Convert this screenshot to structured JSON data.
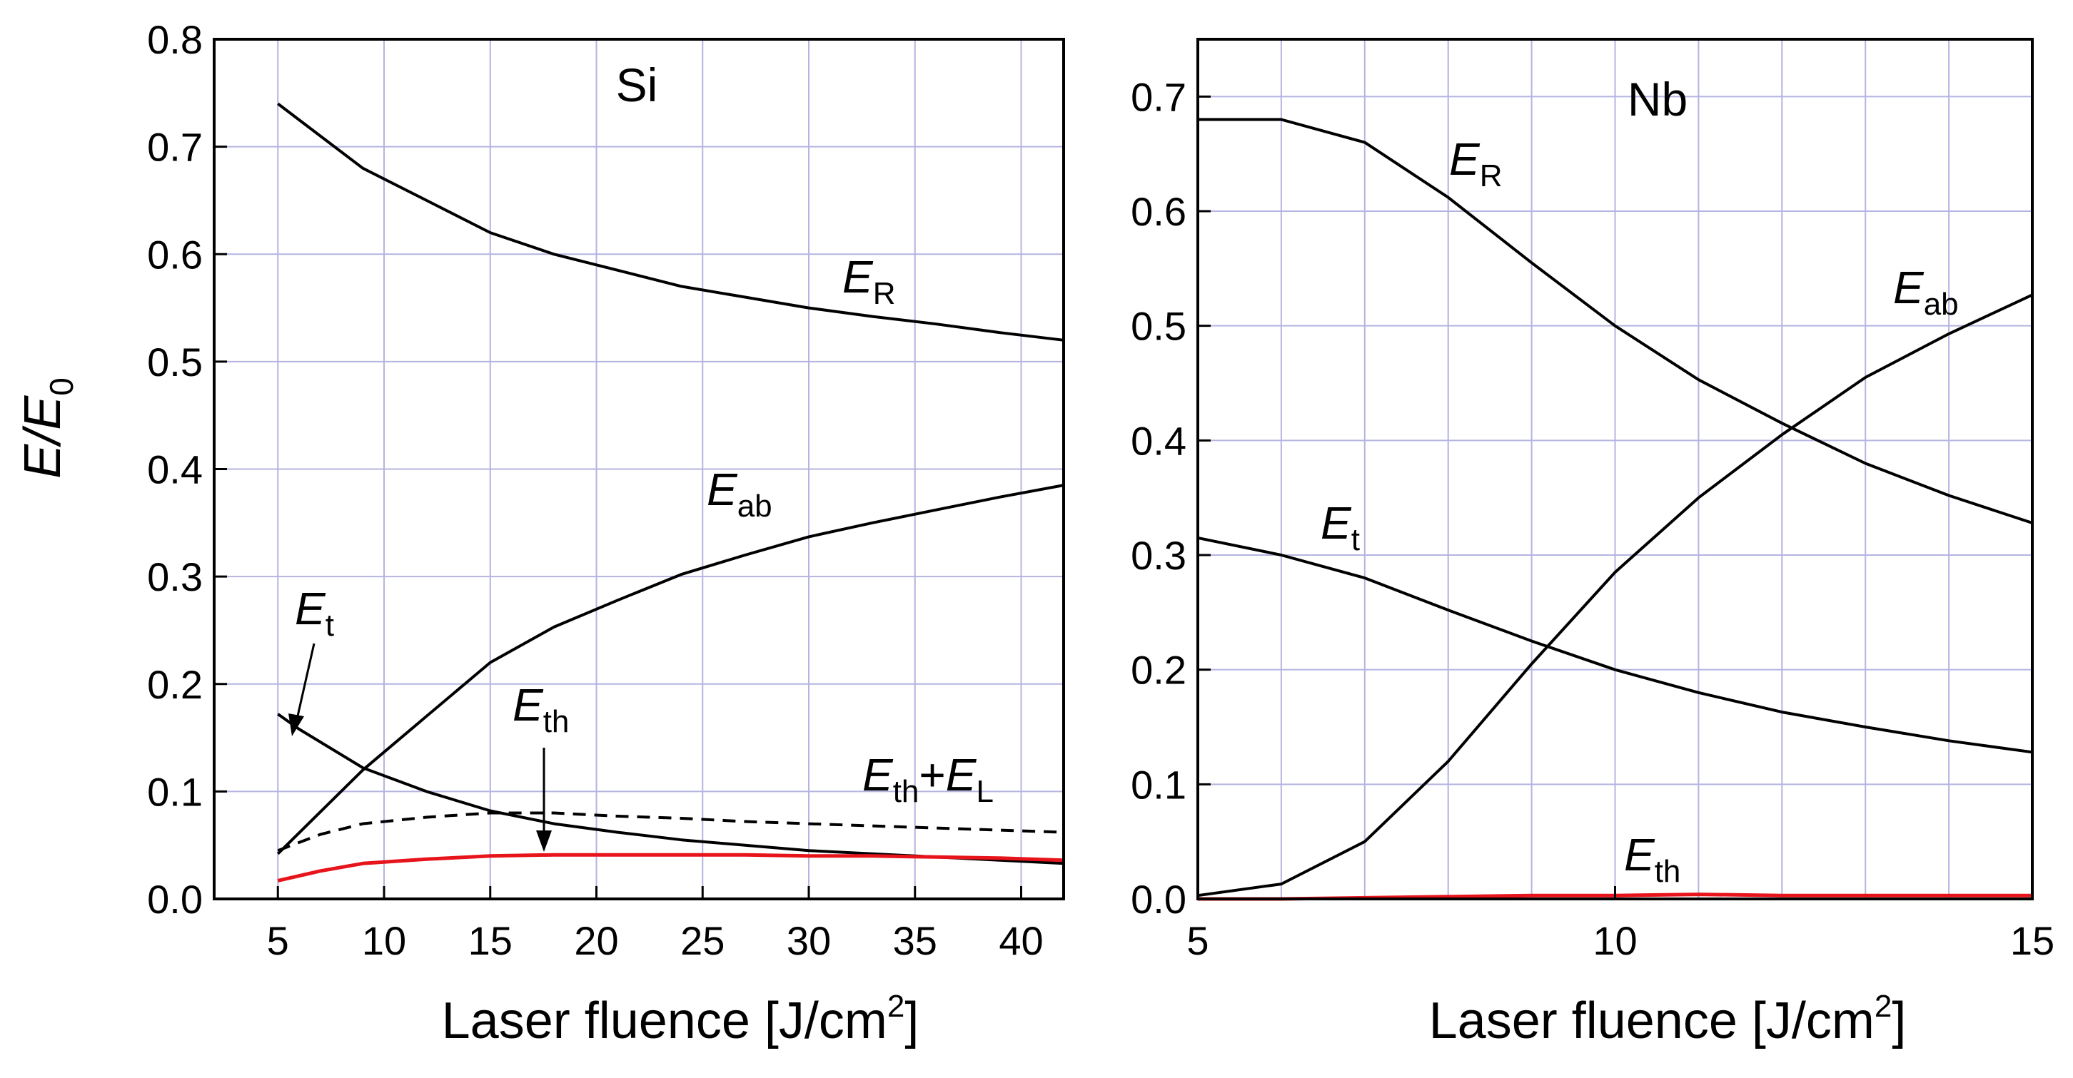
{
  "ylabel": {
    "main": "E/E",
    "sub": "0"
  },
  "colors": {
    "line": "#000000",
    "eth": "#e8141b",
    "grid": "#b4b4e0"
  },
  "chart_data": [
    {
      "type": "line",
      "title": "Si",
      "xlabel": "Laser fluence [J/cm2]",
      "xlabel_parts": {
        "text": "Laser fluence [J/cm",
        "sup": "2",
        "end": "]"
      },
      "ylabel": "E/E0",
      "xlim": [
        2,
        42
      ],
      "ylim": [
        0,
        0.8
      ],
      "xticks": [
        "5",
        "10",
        "15",
        "20",
        "25",
        "30",
        "35",
        "40"
      ],
      "yticks": [
        "0.0",
        "0.1",
        "0.2",
        "0.3",
        "0.4",
        "0.5",
        "0.6",
        "0.7",
        "0.8"
      ],
      "grid": true,
      "series": [
        {
          "name": "ER",
          "style": "solid",
          "color": "#000000",
          "x": [
            5,
            6,
            9,
            12,
            15,
            18,
            21,
            24,
            27,
            30,
            33,
            36,
            39,
            42
          ],
          "y": [
            0.74,
            0.725,
            0.68,
            0.65,
            0.62,
            0.6,
            0.585,
            0.57,
            0.56,
            0.55,
            0.542,
            0.535,
            0.527,
            0.52
          ]
        },
        {
          "name": "Eab",
          "style": "solid",
          "color": "#000000",
          "x": [
            5,
            9,
            12,
            15,
            18,
            21,
            24,
            27,
            30,
            33,
            36,
            39,
            42
          ],
          "y": [
            0.042,
            0.12,
            0.17,
            0.22,
            0.253,
            0.278,
            0.302,
            0.32,
            0.337,
            0.35,
            0.362,
            0.374,
            0.385
          ]
        },
        {
          "name": "Et",
          "style": "solid",
          "color": "#000000",
          "x": [
            5,
            6,
            9,
            12,
            15,
            18,
            21,
            24,
            27,
            30,
            33,
            36,
            39,
            42
          ],
          "y": [
            0.172,
            0.158,
            0.122,
            0.1,
            0.082,
            0.07,
            0.062,
            0.055,
            0.05,
            0.045,
            0.042,
            0.039,
            0.036,
            0.033
          ]
        },
        {
          "name": "Eth+EL",
          "style": "dashed",
          "color": "#000000",
          "x": [
            5,
            7,
            9,
            12,
            15,
            18,
            21,
            24,
            27,
            30,
            33,
            36,
            39,
            42
          ],
          "y": [
            0.045,
            0.06,
            0.07,
            0.076,
            0.08,
            0.08,
            0.077,
            0.075,
            0.072,
            0.07,
            0.068,
            0.066,
            0.064,
            0.062
          ]
        },
        {
          "name": "Eth",
          "style": "solid",
          "color": "#e8141b",
          "x": [
            5,
            7,
            9,
            12,
            15,
            18,
            21,
            24,
            27,
            30,
            33,
            36,
            39,
            42
          ],
          "y": [
            0.017,
            0.026,
            0.033,
            0.037,
            0.04,
            0.041,
            0.041,
            0.041,
            0.041,
            0.04,
            0.04,
            0.039,
            0.038,
            0.036
          ]
        }
      ]
    },
    {
      "type": "line",
      "title": "Nb",
      "xlabel": "Laser fluence [J/cm2]",
      "xlabel_parts": {
        "text": "Laser fluence [J/cm",
        "sup": "2",
        "end": "]"
      },
      "xlim": [
        5,
        15
      ],
      "ylim": [
        0,
        0.75
      ],
      "xticks": [
        "5",
        "10",
        "15"
      ],
      "yticks": [
        "0.0",
        "0.1",
        "0.2",
        "0.3",
        "0.4",
        "0.5",
        "0.6",
        "0.7"
      ],
      "grid": true,
      "series": [
        {
          "name": "ER",
          "style": "solid",
          "color": "#000000",
          "x": [
            5,
            6,
            7,
            8,
            9,
            10,
            11,
            12,
            13,
            14,
            15
          ],
          "y": [
            0.68,
            0.68,
            0.66,
            0.612,
            0.555,
            0.5,
            0.453,
            0.415,
            0.38,
            0.352,
            0.328
          ]
        },
        {
          "name": "Eab",
          "style": "solid",
          "color": "#000000",
          "x": [
            5,
            6,
            7,
            8,
            9,
            10,
            11,
            12,
            13,
            14,
            15
          ],
          "y": [
            0.003,
            0.013,
            0.05,
            0.12,
            0.205,
            0.285,
            0.35,
            0.405,
            0.455,
            0.493,
            0.527
          ]
        },
        {
          "name": "Et",
          "style": "solid",
          "color": "#000000",
          "x": [
            5,
            6,
            7,
            8,
            9,
            10,
            11,
            12,
            13,
            14,
            15
          ],
          "y": [
            0.315,
            0.3,
            0.28,
            0.252,
            0.225,
            0.2,
            0.18,
            0.163,
            0.15,
            0.138,
            0.128
          ]
        },
        {
          "name": "Eth",
          "style": "solid",
          "color": "#e8141b",
          "x": [
            5,
            6,
            7,
            8,
            9,
            10,
            11,
            12,
            13,
            14,
            15
          ],
          "y": [
            0.0,
            0.0,
            0.001,
            0.002,
            0.003,
            0.003,
            0.004,
            0.003,
            0.003,
            0.003,
            0.003
          ]
        }
      ]
    }
  ],
  "annotations": {
    "si": {
      "ER": {
        "main": "E",
        "sub": "R"
      },
      "Eab": {
        "main": "E",
        "sub": "ab"
      },
      "Et": {
        "main": "E",
        "sub": "t"
      },
      "Eth": {
        "main": "E",
        "sub": "th"
      },
      "EthEL": {
        "main1": "E",
        "sub1": "th",
        "plus": "+",
        "main2": "E",
        "sub2": "L"
      }
    },
    "nb": {
      "ER": {
        "main": "E",
        "sub": "R"
      },
      "Eab": {
        "main": "E",
        "sub": "ab"
      },
      "Et": {
        "main": "E",
        "sub": "t"
      },
      "Eth": {
        "main": "E",
        "sub": "th"
      }
    }
  }
}
